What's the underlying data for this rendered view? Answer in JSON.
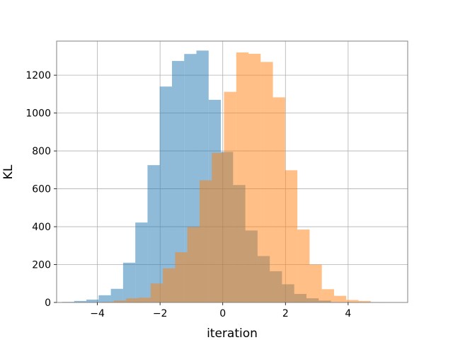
{
  "chart_data": {
    "type": "bar",
    "title": "",
    "xlabel": "iteration",
    "ylabel": "KL",
    "xlim": [
      -5.3,
      5.9
    ],
    "ylim": [
      0,
      1380
    ],
    "grid": true,
    "xticks": [
      -4,
      -2,
      0,
      2,
      4
    ],
    "xtick_labels": [
      "−4",
      "−2",
      "0",
      "2",
      "4"
    ],
    "yticks": [
      0,
      200,
      400,
      600,
      800,
      1000,
      1200
    ],
    "ytick_labels": [
      "0",
      "200",
      "400",
      "600",
      "800",
      "1000",
      "1200"
    ],
    "series": [
      {
        "color": "#1f77b4",
        "opacity": 0.5,
        "bins": [
          [
            -5.13,
            -4.74,
            3
          ],
          [
            -4.74,
            -4.35,
            8
          ],
          [
            -4.35,
            -3.96,
            15
          ],
          [
            -3.96,
            -3.57,
            38
          ],
          [
            -3.57,
            -3.18,
            72
          ],
          [
            -3.18,
            -2.79,
            210
          ],
          [
            -2.79,
            -2.4,
            422
          ],
          [
            -2.4,
            -2.01,
            725
          ],
          [
            -2.01,
            -1.62,
            1140
          ],
          [
            -1.62,
            -1.23,
            1275
          ],
          [
            -1.23,
            -0.84,
            1312
          ],
          [
            -0.84,
            -0.45,
            1330
          ],
          [
            -0.45,
            -0.06,
            1070
          ],
          [
            -0.06,
            0.33,
            795
          ],
          [
            0.33,
            0.72,
            620
          ],
          [
            0.72,
            1.11,
            380
          ],
          [
            1.11,
            1.5,
            245
          ],
          [
            1.5,
            1.89,
            165
          ],
          [
            1.89,
            2.28,
            96
          ],
          [
            2.28,
            2.67,
            45
          ],
          [
            2.67,
            3.06,
            22
          ],
          [
            3.06,
            3.45,
            10
          ]
        ]
      },
      {
        "color": "#ff7f0e",
        "opacity": 0.5,
        "bins": [
          [
            -3.86,
            -3.47,
            3
          ],
          [
            -3.47,
            -3.08,
            10
          ],
          [
            -3.08,
            -2.69,
            22
          ],
          [
            -2.69,
            -2.3,
            25
          ],
          [
            -2.3,
            -1.91,
            100
          ],
          [
            -1.91,
            -1.52,
            180
          ],
          [
            -1.52,
            -1.13,
            265
          ],
          [
            -1.13,
            -0.74,
            398
          ],
          [
            -0.74,
            -0.35,
            645
          ],
          [
            -0.35,
            0.04,
            790
          ],
          [
            0.04,
            0.43,
            1112
          ],
          [
            0.43,
            0.82,
            1320
          ],
          [
            0.82,
            1.21,
            1313
          ],
          [
            1.21,
            1.6,
            1270
          ],
          [
            1.6,
            1.99,
            1083
          ],
          [
            1.99,
            2.38,
            698
          ],
          [
            2.38,
            2.77,
            385
          ],
          [
            2.77,
            3.16,
            200
          ],
          [
            3.16,
            3.55,
            70
          ],
          [
            3.55,
            3.94,
            35
          ],
          [
            3.94,
            4.33,
            13
          ],
          [
            4.33,
            4.72,
            8
          ],
          [
            4.72,
            5.11,
            2
          ]
        ]
      }
    ]
  }
}
